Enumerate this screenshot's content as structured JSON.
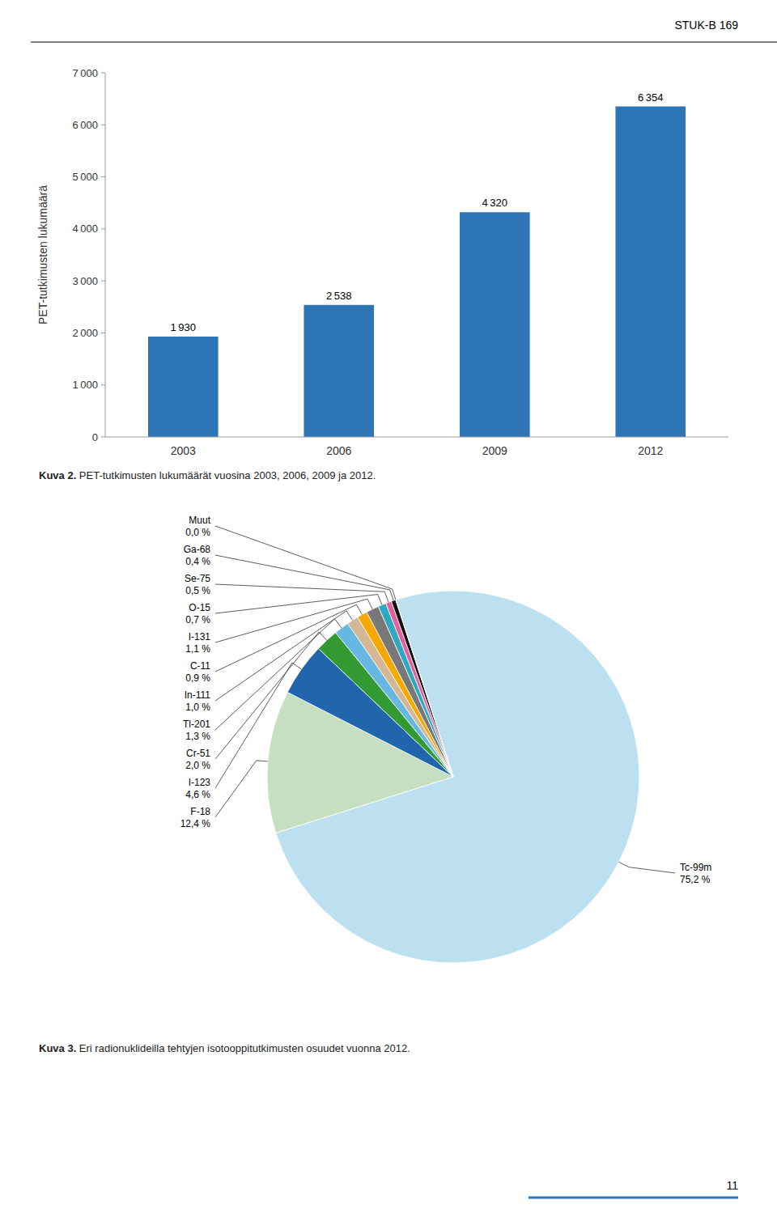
{
  "chart_data": [
    {
      "type": "bar",
      "title": "Kuva 2. PET-tutkimusten lukumäärät vuosina 2003, 2006, 2009 ja 2012.",
      "y_label": "PET-tutkimusten lukumäärä",
      "categories": [
        "2003",
        "2006",
        "2009",
        "2012"
      ],
      "values": [
        1930,
        2538,
        4320,
        6354
      ],
      "value_labels": [
        "1 930",
        "2 538",
        "4 320",
        "6 354"
      ],
      "data_labels": true,
      "color": "#2E75B6",
      "ylim": [
        0,
        7000
      ],
      "yticks": [
        0,
        {
          "value": 1000,
          "label": "1 000"
        },
        {
          "value": 2000,
          "label": "2 000"
        },
        {
          "value": 3000,
          "label": "3 000"
        },
        {
          "value": 4000,
          "label": "4 000"
        },
        {
          "value": 5000,
          "label": "5 000"
        },
        {
          "value": 6000,
          "label": "6 000"
        },
        {
          "value": 7000,
          "label": "7 000"
        }
      ],
      "grid": false,
      "annotations": [
        "STUK-B 169",
        "11"
      ]
    },
    {
      "type": "pie",
      "title": "Kuva 3. Eri radionuklideilla tehtyjen isotooppitutkimusten osuudet vuonna 2012.",
      "categories": [
        "Tc-99m",
        "F-18",
        "I-123",
        "Cr-51",
        "Tl-201",
        "In-111",
        "C-11",
        "I-131",
        "O-15",
        "Se-75",
        "Ga-68",
        "Muut"
      ],
      "values": [
        75.2,
        12.4,
        4.6,
        2.0,
        1.3,
        1.0,
        0.9,
        1.1,
        0.7,
        0.5,
        0.4,
        0.001
      ],
      "value_labels": [
        "75,2 %",
        "12,4 %",
        "4,6 %",
        "2,0 %",
        "1,3 %",
        "1,0 %",
        "0,9 %",
        "1,1 %",
        "0,7 %",
        "0,5 %",
        "0,4 %",
        "0,0 %"
      ],
      "data_labels": true,
      "colors": [
        "#BDE0F0",
        "#C5DFC0",
        "#2166AC",
        "#339933",
        "#66B8E0",
        "#D4B896",
        "#F5A800",
        "#787878",
        "#30A8C0",
        "#E060A0",
        "#111111",
        "#F8F8F8"
      ]
    }
  ]
}
